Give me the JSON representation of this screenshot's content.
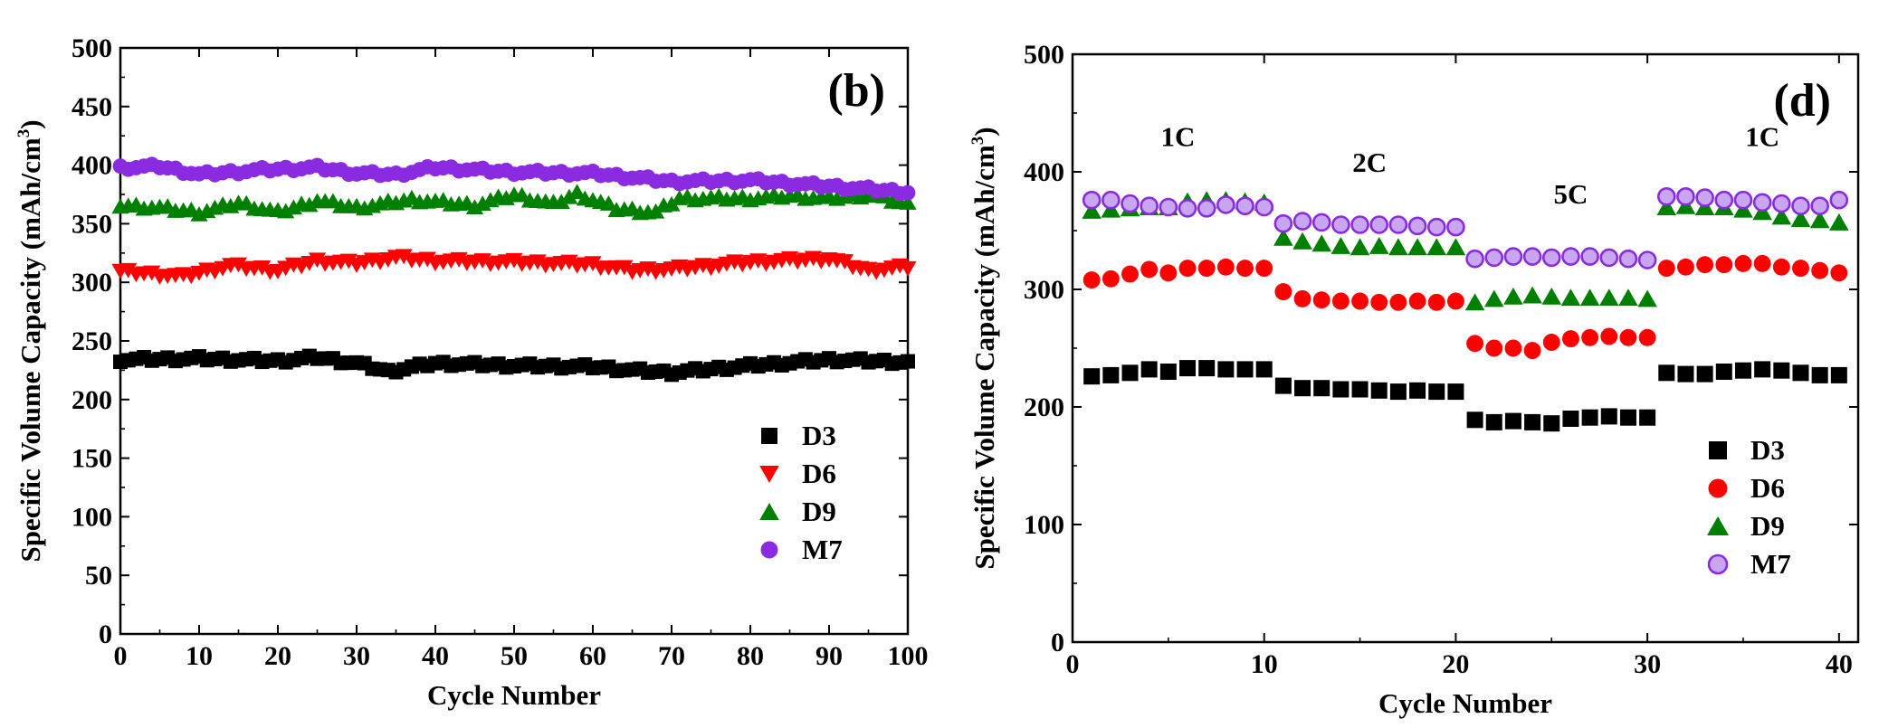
{
  "chart_data": [
    {
      "type": "scatter",
      "panel_label": "(b)",
      "xlabel": "Cycle Number",
      "ylabel": "Specific Volume Capacity (mAh/cm",
      "ylabel_sup": "3",
      "ylabel_end": ")",
      "xlim": [
        0,
        100
      ],
      "ylim": [
        0,
        500
      ],
      "xticks": [
        0,
        10,
        20,
        30,
        40,
        50,
        60,
        70,
        80,
        90,
        100
      ],
      "yticks": [
        0,
        50,
        100,
        150,
        200,
        250,
        300,
        350,
        400,
        450,
        500
      ],
      "legend_position": "lower-right",
      "legend": [
        "D3",
        "D6",
        "D9",
        "M7"
      ],
      "series": [
        {
          "name": "D3",
          "marker": "square",
          "color": "#000000",
          "anchors_x": [
            0,
            10,
            20,
            25,
            30,
            34,
            40,
            50,
            60,
            65,
            70,
            80,
            90,
            100
          ],
          "anchors_y": [
            234,
            235,
            233,
            236,
            231,
            224,
            231,
            229,
            228,
            225,
            223,
            229,
            234,
            232
          ]
        },
        {
          "name": "D6",
          "marker": "triangle-down",
          "color": "#ff0000",
          "anchors_x": [
            0,
            8,
            14,
            20,
            25,
            30,
            35,
            40,
            50,
            60,
            65,
            70,
            80,
            90,
            95,
            100
          ],
          "anchors_y": [
            309,
            305,
            314,
            310,
            318,
            316,
            321,
            318,
            317,
            315,
            310,
            311,
            317,
            320,
            310,
            313
          ]
        },
        {
          "name": "D9",
          "marker": "triangle-up",
          "color": "#008000",
          "anchors_x": [
            0,
            5,
            10,
            15,
            20,
            25,
            30,
            37,
            45,
            50,
            55,
            58,
            63,
            68,
            71,
            80,
            85,
            90,
            95,
            100
          ],
          "anchors_y": [
            366,
            364,
            360,
            368,
            360,
            370,
            364,
            371,
            366,
            375,
            367,
            376,
            363,
            360,
            372,
            372,
            374,
            372,
            375,
            367
          ]
        },
        {
          "name": "M7",
          "marker": "circle",
          "color": "#8a2be2",
          "anchors_x": [
            0,
            5,
            10,
            18,
            25,
            30,
            35,
            40,
            50,
            60,
            70,
            80,
            90,
            100
          ],
          "anchors_y": [
            398,
            399,
            392,
            396,
            398,
            393,
            392,
            398,
            394,
            393,
            386,
            387,
            382,
            377
          ]
        }
      ]
    },
    {
      "type": "scatter",
      "panel_label": "(d)",
      "xlabel": "Cycle Number",
      "ylabel": "Specific Volume Capacity (mAh/cm",
      "ylabel_sup": "3",
      "ylabel_end": ")",
      "xlim": [
        0,
        41
      ],
      "ylim": [
        0,
        500
      ],
      "xticks": [
        0,
        10,
        20,
        30,
        40
      ],
      "yticks": [
        0,
        100,
        200,
        300,
        400,
        500
      ],
      "legend_position": "lower-right",
      "legend": [
        "D3",
        "D6",
        "D9",
        "M7"
      ],
      "rate_labels": [
        {
          "text": "1C",
          "x": 5.5,
          "y": 422
        },
        {
          "text": "2C",
          "x": 15.5,
          "y": 400
        },
        {
          "text": "5C",
          "x": 26,
          "y": 373
        },
        {
          "text": "1C",
          "x": 36,
          "y": 422
        }
      ],
      "series": [
        {
          "name": "D3",
          "marker": "square",
          "color": "#000000",
          "x": [
            1,
            2,
            3,
            4,
            5,
            6,
            7,
            8,
            9,
            10,
            11,
            12,
            13,
            14,
            15,
            16,
            17,
            18,
            19,
            20,
            21,
            22,
            23,
            24,
            25,
            26,
            27,
            28,
            29,
            30,
            31,
            32,
            33,
            34,
            35,
            36,
            37,
            38,
            39,
            40
          ],
          "y": [
            226,
            227,
            229,
            232,
            230,
            233,
            233,
            232,
            232,
            232,
            218,
            216,
            216,
            215,
            215,
            214,
            213,
            214,
            213,
            213,
            189,
            187,
            188,
            187,
            186,
            190,
            191,
            192,
            191,
            191,
            229,
            228,
            228,
            230,
            231,
            232,
            231,
            229,
            227,
            227
          ]
        },
        {
          "name": "D6",
          "marker": "circle",
          "color": "#ff0000",
          "x": [
            1,
            2,
            3,
            4,
            5,
            6,
            7,
            8,
            9,
            10,
            11,
            12,
            13,
            14,
            15,
            16,
            17,
            18,
            19,
            20,
            21,
            22,
            23,
            24,
            25,
            26,
            27,
            28,
            29,
            30,
            31,
            32,
            33,
            34,
            35,
            36,
            37,
            38,
            39,
            40
          ],
          "y": [
            308,
            309,
            313,
            317,
            314,
            318,
            318,
            319,
            318,
            318,
            298,
            292,
            291,
            290,
            290,
            289,
            289,
            290,
            289,
            290,
            254,
            250,
            250,
            248,
            255,
            258,
            259,
            260,
            259,
            259,
            318,
            319,
            321,
            321,
            322,
            322,
            319,
            318,
            316,
            314
          ]
        },
        {
          "name": "D9",
          "marker": "triangle-up",
          "color": "#008000",
          "x": [
            1,
            2,
            3,
            4,
            5,
            6,
            7,
            8,
            9,
            10,
            11,
            12,
            13,
            14,
            15,
            16,
            17,
            18,
            19,
            20,
            21,
            22,
            23,
            24,
            25,
            26,
            27,
            28,
            29,
            30,
            31,
            32,
            33,
            34,
            35,
            36,
            37,
            38,
            39,
            40
          ],
          "y": [
            367,
            368,
            369,
            370,
            370,
            375,
            376,
            376,
            375,
            374,
            344,
            341,
            339,
            337,
            336,
            337,
            336,
            336,
            336,
            336,
            289,
            292,
            294,
            295,
            294,
            293,
            293,
            293,
            293,
            292,
            370,
            371,
            370,
            370,
            368,
            366,
            362,
            360,
            359,
            357
          ]
        },
        {
          "name": "M7",
          "marker": "circle-outline",
          "color": "#8a2be2",
          "x": [
            1,
            2,
            3,
            4,
            5,
            6,
            7,
            8,
            9,
            10,
            11,
            12,
            13,
            14,
            15,
            16,
            17,
            18,
            19,
            20,
            21,
            22,
            23,
            24,
            25,
            26,
            27,
            28,
            29,
            30,
            31,
            32,
            33,
            34,
            35,
            36,
            37,
            38,
            39,
            40
          ],
          "y": [
            376,
            376,
            373,
            371,
            370,
            369,
            369,
            372,
            371,
            370,
            356,
            358,
            357,
            355,
            355,
            355,
            355,
            354,
            353,
            353,
            326,
            327,
            328,
            328,
            327,
            328,
            328,
            327,
            326,
            325,
            379,
            379,
            378,
            376,
            376,
            374,
            373,
            371,
            371,
            376
          ]
        }
      ]
    }
  ]
}
